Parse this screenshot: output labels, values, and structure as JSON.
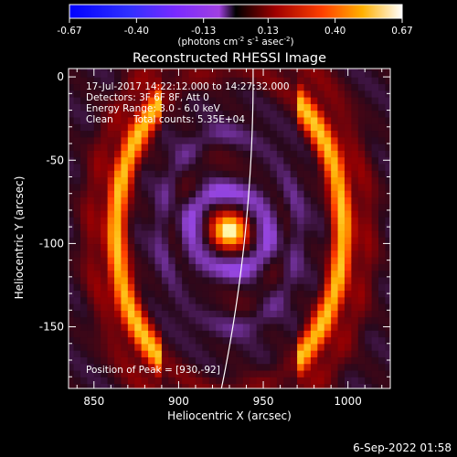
{
  "chart_data": {
    "type": "heatmap",
    "title": "Reconstructed RHESSI Image",
    "colorbar": {
      "ticks": [
        "-0.67",
        "-0.40",
        "-0.13",
        "0.13",
        "0.40",
        "0.67"
      ],
      "tick_values": [
        -0.67,
        -0.4,
        -0.13,
        0.13,
        0.4,
        0.67
      ],
      "range": [
        -0.67,
        0.67
      ],
      "label_main": "(photons cm",
      "label_exp1": "-2",
      "label_mid1": " s",
      "label_exp2": "-1",
      "label_mid2": " asec",
      "label_exp3": "-2",
      "label_end": ")"
    },
    "xlabel": "Heliocentric X (arcsec)",
    "ylabel": "Heliocentric Y (arcsec)",
    "xlim": [
      835,
      1025
    ],
    "ylim": [
      -187,
      5
    ],
    "xticks": [
      850,
      900,
      950,
      1000
    ],
    "yticks": [
      0,
      -50,
      -100,
      -150
    ],
    "xtick_labels": [
      "850",
      "900",
      "950",
      "1000"
    ],
    "ytick_labels": [
      "0",
      "-50",
      "-100",
      "-150"
    ],
    "annotations": {
      "line1": "17-Jul-2017 14:22:12.000 to 14:27:32.000",
      "line2": "Detectors: 3F 6F 8F, Att 0",
      "line3": "Energy Range: 3.0 - 6.0 keV",
      "line4a": "Clean",
      "line4b": "Total counts: 5.35E+04",
      "peak": "Position of Peak = [930,-92]"
    },
    "peak_position": [
      930,
      -92
    ],
    "grid": false
  },
  "footer": {
    "date": "6-Sep-2022 01:58"
  }
}
